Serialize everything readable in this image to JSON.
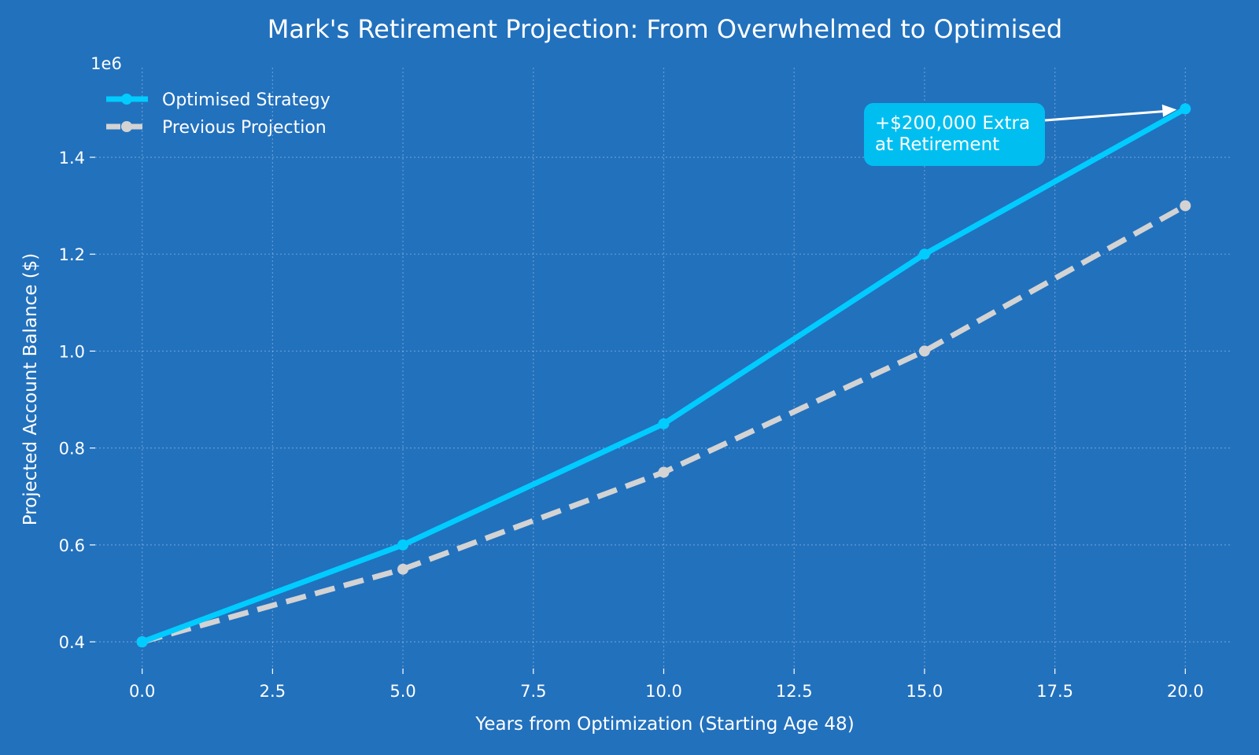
{
  "chart_data": {
    "type": "line",
    "title": "Mark's Retirement Projection: From Overwhelmed to Optimised",
    "xlabel": "Years from Optimization (Starting Age 48)",
    "ylabel": "Projected Account Balance ($)",
    "y_offset_label": "1e6",
    "xlim": [
      -0.9,
      20.9
    ],
    "ylim": [
      0.345,
      1.585
    ],
    "x_ticks": [
      0,
      2.5,
      5,
      7.5,
      10,
      12.5,
      15,
      17.5,
      20
    ],
    "x_tick_labels": [
      "0.0",
      "2.5",
      "5.0",
      "7.5",
      "10.0",
      "12.5",
      "15.0",
      "17.5",
      "20.0"
    ],
    "y_ticks": [
      0.4,
      0.6,
      0.8,
      1.0,
      1.2,
      1.4
    ],
    "y_tick_labels": [
      "0.4",
      "0.6",
      "0.8",
      "1.0",
      "1.2",
      "1.4"
    ],
    "grid": true,
    "legend_position": "top-left",
    "series": [
      {
        "name": "Optimised Strategy",
        "x": [
          0,
          5,
          10,
          15,
          20
        ],
        "values": [
          0.4,
          0.6,
          0.85,
          1.2,
          1.5
        ],
        "color": "#00CCFF",
        "style": "solid"
      },
      {
        "name": "Previous Projection",
        "x": [
          0,
          5,
          10,
          15,
          20
        ],
        "values": [
          0.4,
          0.55,
          0.75,
          1.0,
          1.3
        ],
        "color": "#D3D3D3",
        "style": "dashed"
      }
    ],
    "annotation": {
      "lines": [
        "+$200,000 Extra",
        "at Retirement"
      ],
      "target_x": 20,
      "target_y": 1.5,
      "box_color": "#00BFF0"
    }
  }
}
